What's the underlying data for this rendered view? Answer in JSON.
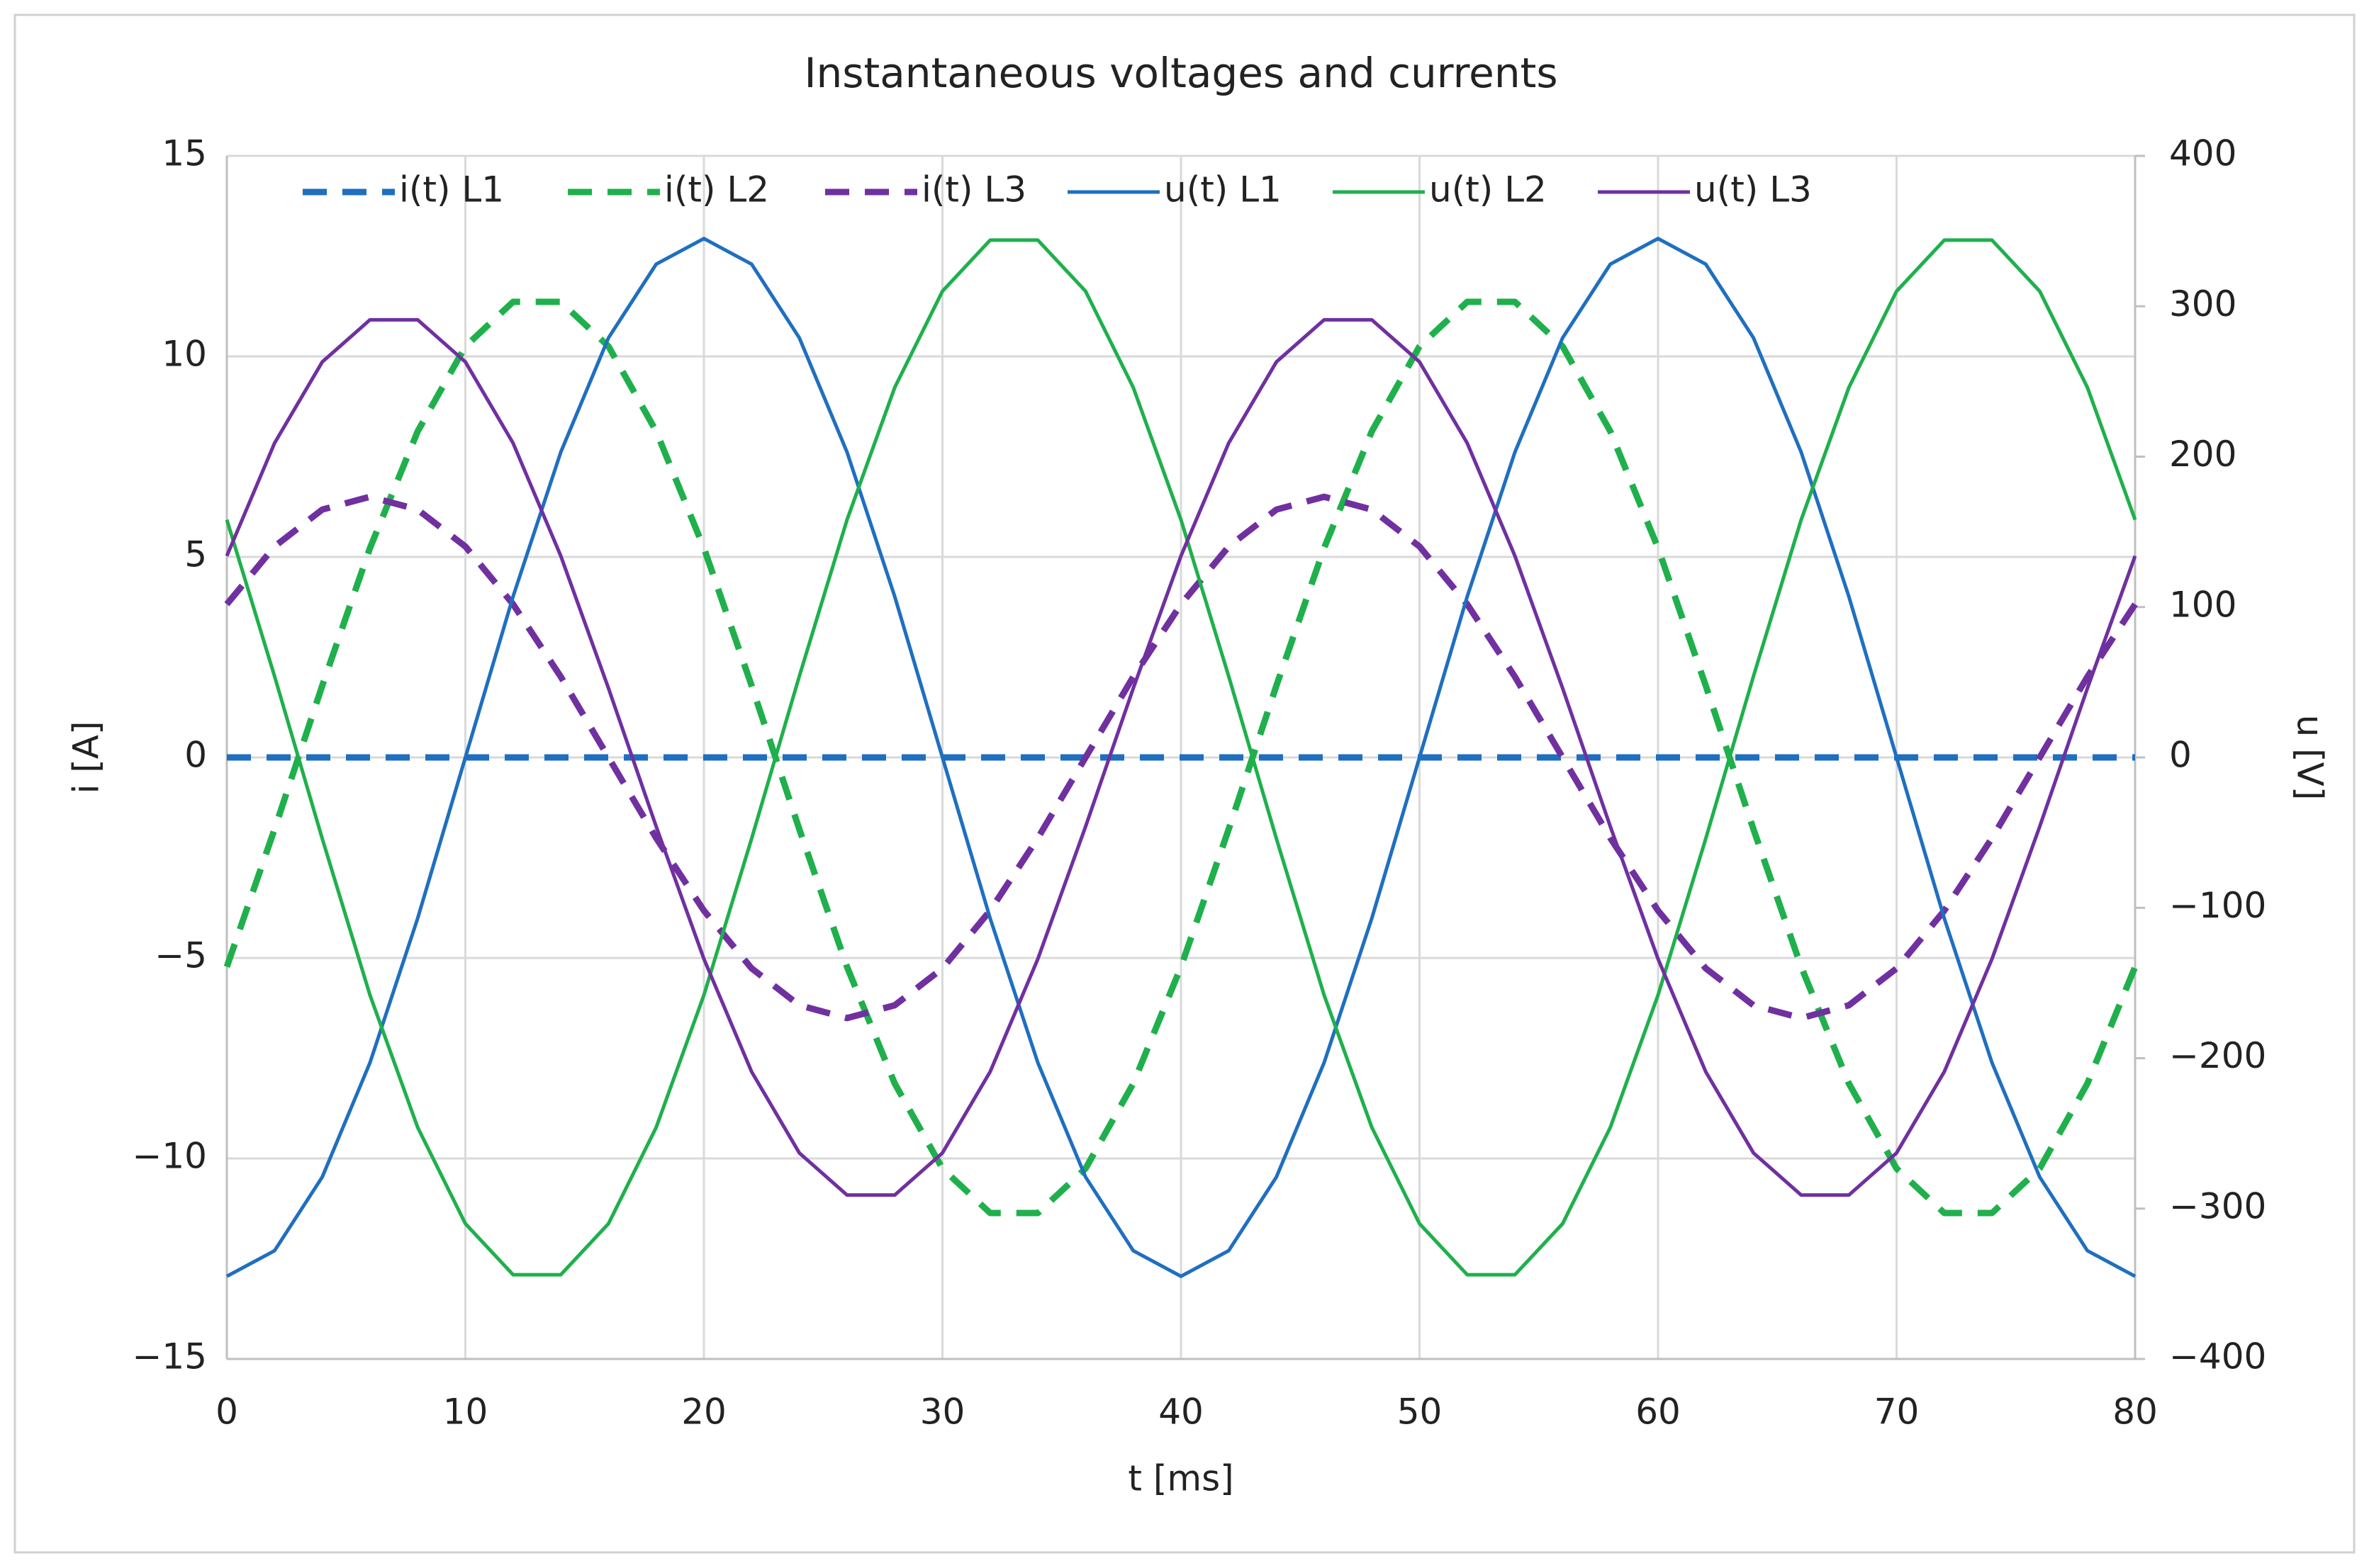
{
  "chart_data": {
    "type": "line",
    "title": "Instantaneous voltages and currents",
    "xlabel": "t [ms]",
    "ylabel": "i [A]",
    "y2label": "u [V]",
    "x": [
      0,
      2,
      4,
      6,
      8,
      10,
      12,
      14,
      16,
      18,
      20,
      22,
      24,
      26,
      28,
      30,
      32,
      34,
      36,
      38,
      40,
      42,
      44,
      46,
      48,
      50,
      52,
      54,
      56,
      58,
      60,
      62,
      64,
      66,
      68,
      70,
      72,
      74,
      76,
      78,
      80
    ],
    "xlim": [
      0,
      80
    ],
    "xticks": [
      0,
      10,
      20,
      30,
      40,
      50,
      60,
      70,
      80
    ],
    "ylim": [
      -15,
      15
    ],
    "yticks": [
      {
        "value": -15,
        "label": "−15"
      },
      {
        "value": -10,
        "label": "−10"
      },
      {
        "value": -5,
        "label": "−5"
      },
      0,
      5,
      10,
      15
    ],
    "y2lim": [
      -400,
      400
    ],
    "y2ticks": [
      {
        "value": -400,
        "label": "−400"
      },
      {
        "value": -300,
        "label": "−300"
      },
      {
        "value": -200,
        "label": "−200"
      },
      {
        "value": -100,
        "label": "−100"
      },
      0,
      100,
      200,
      300,
      400
    ],
    "grid": true,
    "legend": "top",
    "series": [
      {
        "name": "i(t) L1",
        "color": "#1f6fc0",
        "linestyle": "dashed",
        "axis": "y",
        "values": [
          0,
          0,
          0,
          0,
          0,
          0,
          0,
          0,
          0,
          0,
          0,
          0,
          0,
          0,
          0,
          0,
          0,
          0,
          0,
          0,
          0,
          0,
          0,
          0,
          0,
          0,
          0,
          0,
          0,
          0,
          0,
          0,
          0,
          0,
          0,
          0,
          0,
          0,
          0,
          0,
          0
        ]
      },
      {
        "name": "i(t) L2",
        "color": "#1fb04c",
        "linestyle": "dashed",
        "axis": "y",
        "values": [
          -5.22,
          -1.79,
          1.79,
          5.22,
          8.13,
          10.25,
          11.36,
          11.36,
          10.25,
          8.13,
          5.22,
          1.79,
          -1.79,
          -5.22,
          -8.13,
          -10.25,
          -11.36,
          -11.36,
          -10.25,
          -8.13,
          -5.22,
          -1.79,
          1.79,
          5.22,
          8.13,
          10.25,
          11.36,
          11.36,
          10.25,
          8.13,
          5.22,
          1.79,
          -1.79,
          -5.22,
          -8.13,
          -10.25,
          -11.36,
          -11.36,
          -10.25,
          -8.13,
          -5.22
        ]
      },
      {
        "name": "i(t) L3",
        "color": "#7030a0",
        "linestyle": "dashed",
        "axis": "y",
        "values": [
          3.82,
          5.26,
          6.18,
          6.5,
          6.18,
          5.26,
          3.82,
          2.01,
          0,
          -2.01,
          -3.82,
          -5.26,
          -6.18,
          -6.5,
          -6.18,
          -5.26,
          -3.82,
          -2.01,
          0,
          2.01,
          3.82,
          5.26,
          6.18,
          6.5,
          6.18,
          5.26,
          3.82,
          2.01,
          0,
          -2.01,
          -3.82,
          -5.26,
          -6.18,
          -6.5,
          -6.18,
          -5.26,
          -3.82,
          -2.01,
          0,
          2.01,
          3.82
        ]
      },
      {
        "name": "u(t) L1",
        "color": "#1f6fc0",
        "linestyle": "solid",
        "axis": "y2",
        "values": [
          -345,
          -328,
          -279,
          -203,
          -107,
          0,
          107,
          203,
          279,
          328,
          345,
          328,
          279,
          203,
          107,
          0,
          -107,
          -203,
          -279,
          -328,
          -345,
          -328,
          -279,
          -203,
          -107,
          0,
          107,
          203,
          279,
          328,
          345,
          328,
          279,
          203,
          107,
          0,
          -107,
          -203,
          -279,
          -328,
          -345
        ]
      },
      {
        "name": "u(t) L2",
        "color": "#1fb04c",
        "linestyle": "solid",
        "axis": "y2",
        "values": [
          158,
          54,
          -54,
          -158,
          -246,
          -310,
          -344,
          -344,
          -310,
          -246,
          -158,
          -54,
          54,
          158,
          246,
          310,
          344,
          344,
          310,
          246,
          158,
          54,
          -54,
          -158,
          -246,
          -310,
          -344,
          -344,
          -310,
          -246,
          -158,
          -54,
          54,
          158,
          246,
          310,
          344,
          344,
          310,
          246,
          158
        ]
      },
      {
        "name": "u(t) L3",
        "color": "#7030a0",
        "linestyle": "solid",
        "axis": "y2",
        "values": [
          134,
          209,
          263,
          291,
          291,
          263,
          209,
          134,
          46,
          -46,
          -134,
          -209,
          -263,
          -291,
          -291,
          -263,
          -209,
          -134,
          -46,
          46,
          134,
          209,
          263,
          291,
          291,
          263,
          209,
          134,
          46,
          -46,
          -134,
          -209,
          -263,
          -291,
          -291,
          -263,
          -209,
          -134,
          -46,
          46,
          134
        ]
      }
    ]
  }
}
